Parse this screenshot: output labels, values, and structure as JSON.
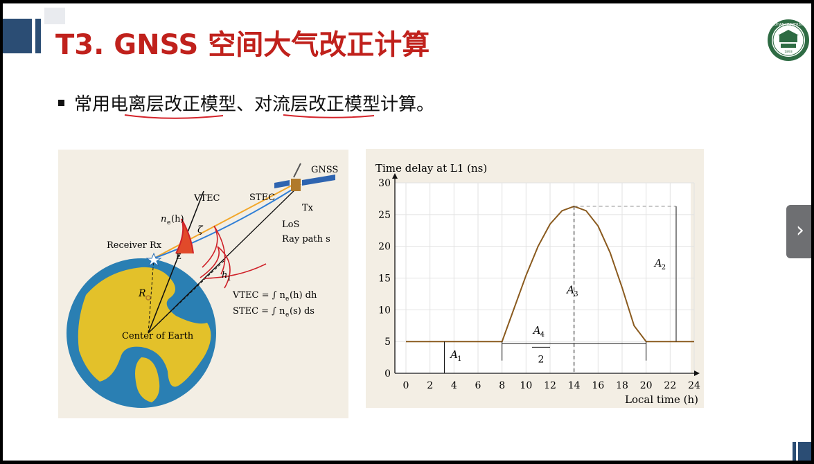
{
  "slide": {
    "title": "T3. GNSS 空间大气改正计算",
    "bullet": "常用电离层改正模型、对流层改正模型计算。",
    "logo_text": "WUHAN UNIVERSITY",
    "logo_year": "1893",
    "colors": {
      "title": "#c0211c",
      "accent_bar": "#2b4d74",
      "underline": "#d4232a",
      "figure_bg": "#f3eee4"
    }
  },
  "figure_left": {
    "labels": {
      "gnss": "GNSS",
      "vtec": "VTEC",
      "stec": "STEC",
      "tx": "Tx",
      "ne_h": "n",
      "ne_h_sub": "e",
      "ne_h_arg": "(h)",
      "zeta": "ζ",
      "los": "LoS",
      "ray_path": "Ray path s",
      "receiver": "Receiver Rx",
      "e": "E",
      "h1": "h",
      "h1_sub": "1",
      "r": "R",
      "vtec_formula": "VTEC = ∫ n",
      "vtec_formula_tail": "(h) dh",
      "stec_formula": "STEC = ∫ n",
      "stec_formula_tail": "(s) ds",
      "center": "Center of Earth"
    }
  },
  "chart_data": {
    "type": "line",
    "title": "Time delay at L1 (ns)",
    "xlabel": "Local time (h)",
    "ylabel": "Time delay at L1 (ns)",
    "xlim": [
      0,
      24
    ],
    "ylim": [
      0,
      30
    ],
    "xticks": [
      0,
      2,
      4,
      6,
      8,
      10,
      12,
      14,
      16,
      18,
      20,
      22,
      24
    ],
    "yticks": [
      0,
      5,
      10,
      15,
      20,
      25,
      30
    ],
    "grid": true,
    "series": [
      {
        "values_x": [
          0,
          8,
          9,
          10,
          11,
          12,
          13,
          14,
          15,
          16,
          17,
          18,
          19,
          20,
          24
        ],
        "values_y": [
          5,
          5,
          10.2,
          15.4,
          20.0,
          23.5,
          25.6,
          26.3,
          25.6,
          23.2,
          19.0,
          13.5,
          7.5,
          5,
          5
        ],
        "color": "#8a5a1e"
      }
    ],
    "annotations": {
      "a1": "A",
      "a1_sub": "1",
      "a2": "A",
      "a2_sub": "2",
      "a3": "A",
      "a3_sub": "3",
      "a4": "A",
      "a4_sub": "4",
      "a4_den": "2"
    }
  },
  "nav": {
    "next_glyph": "›"
  }
}
